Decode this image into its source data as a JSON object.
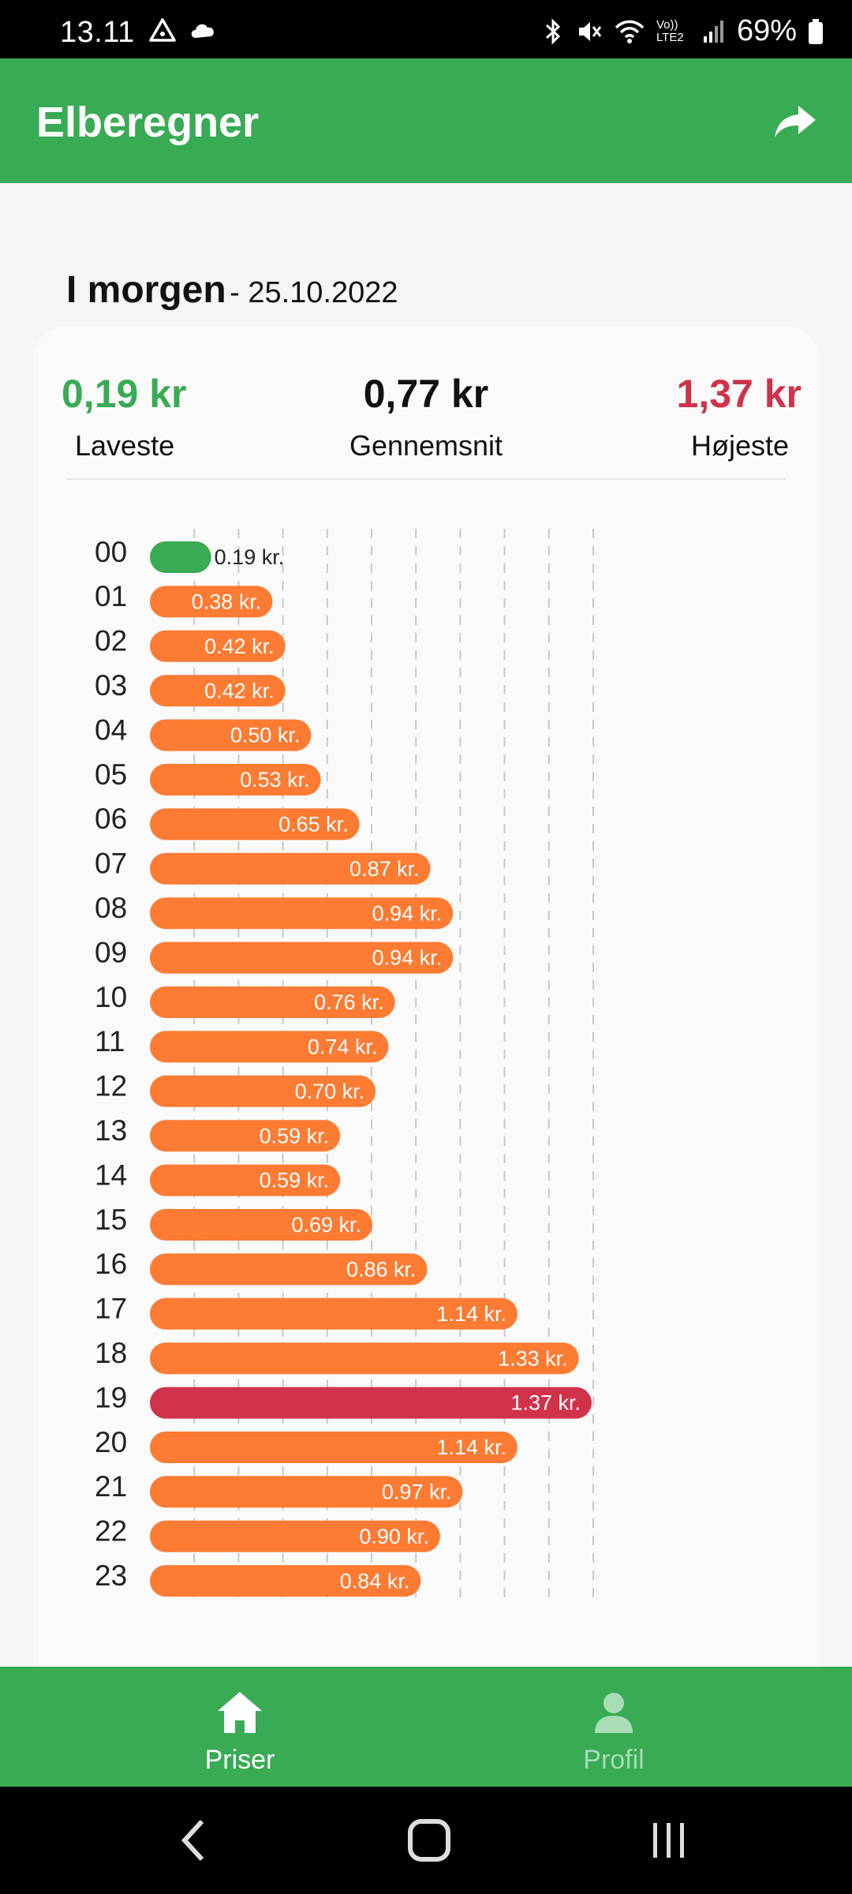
{
  "status": {
    "time": "13.11",
    "battery": "69%",
    "network": "Vo)) LTE2"
  },
  "appbar": {
    "title": "Elberegner"
  },
  "day": {
    "name": "I morgen",
    "date": "- 25.10.2022"
  },
  "stats": {
    "min": {
      "value": "0,19 kr",
      "label": "Laveste"
    },
    "avg": {
      "value": "0,77 kr",
      "label": "Gennemsnit"
    },
    "max": {
      "value": "1,37 kr",
      "label": "Højeste"
    }
  },
  "colors": {
    "green": "#38ab54",
    "orange": "#fd7b33",
    "red": "#d1324b"
  },
  "chart_data": {
    "type": "bar",
    "orientation": "horizontal",
    "unit": "kr.",
    "categories": [
      "00",
      "01",
      "02",
      "03",
      "04",
      "05",
      "06",
      "07",
      "08",
      "09",
      "10",
      "11",
      "12",
      "13",
      "14",
      "15",
      "16",
      "17",
      "18",
      "19",
      "20",
      "21",
      "22",
      "23"
    ],
    "values": [
      0.19,
      0.38,
      0.42,
      0.42,
      0.5,
      0.53,
      0.65,
      0.87,
      0.94,
      0.94,
      0.76,
      0.74,
      0.7,
      0.59,
      0.59,
      0.69,
      0.86,
      1.14,
      1.33,
      1.37,
      1.14,
      0.97,
      0.9,
      0.84
    ],
    "labels": [
      "0.19 kr.",
      "0.38 kr.",
      "0.42 kr.",
      "0.42 kr.",
      "0.50 kr.",
      "0.53 kr.",
      "0.65 kr.",
      "0.87 kr.",
      "0.94 kr.",
      "0.94 kr.",
      "0.76 kr.",
      "0.74 kr.",
      "0.70 kr.",
      "0.59 kr.",
      "0.59 kr.",
      "0.69 kr.",
      "0.86 kr.",
      "1.14 kr.",
      "1.33 kr.",
      "1.37 kr.",
      "1.14 kr.",
      "0.97 kr.",
      "0.90 kr.",
      "0.84 kr."
    ],
    "xlim": [
      0,
      1.37
    ],
    "grid": "vertical-dashed",
    "min_color": "green",
    "max_color": "red",
    "default_color": "orange"
  },
  "bottomnav": {
    "home": "Priser",
    "profile": "Profil"
  }
}
